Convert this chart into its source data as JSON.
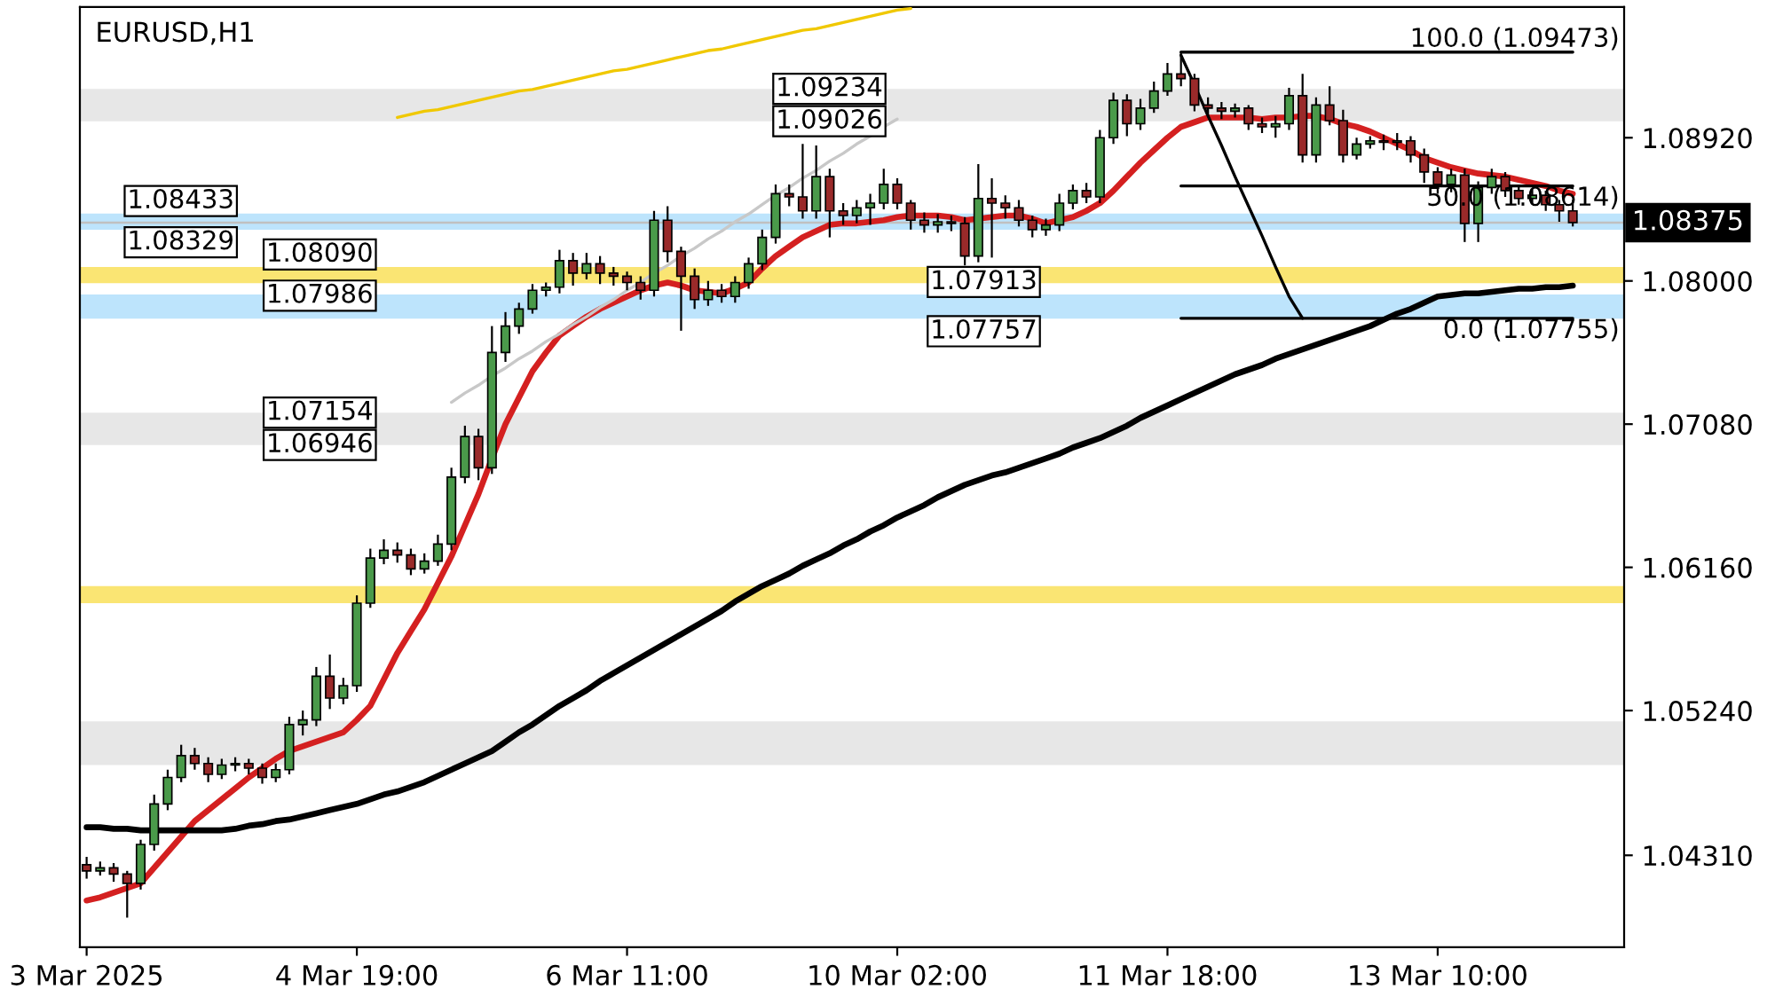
{
  "chart_data": {
    "type": "candlestick",
    "title": "EURUSD,H1",
    "categories": [
      "3 Mar 2025",
      null,
      null,
      null,
      null,
      null,
      null,
      null,
      null,
      null,
      null,
      null,
      null,
      null,
      null,
      null,
      null,
      null,
      null,
      null,
      "4 Mar 19:00",
      null,
      null,
      null,
      null,
      null,
      null,
      null,
      null,
      null,
      null,
      null,
      null,
      null,
      null,
      null,
      null,
      null,
      null,
      null,
      "6 Mar 11:00",
      null,
      null,
      null,
      null,
      null,
      null,
      null,
      null,
      null,
      null,
      null,
      null,
      null,
      null,
      null,
      null,
      null,
      null,
      null,
      "10 Mar 02:00",
      null,
      null,
      null,
      null,
      null,
      null,
      null,
      null,
      null,
      null,
      null,
      null,
      null,
      null,
      null,
      null,
      null,
      null,
      null,
      "11 Mar 18:00",
      null,
      null,
      null,
      null,
      null,
      null,
      null,
      null,
      null,
      null,
      null,
      null,
      null,
      null,
      null,
      null,
      null,
      null,
      null,
      "13 Mar 10:00",
      null,
      null,
      null,
      null,
      null,
      null,
      null,
      null,
      null,
      null
    ],
    "ohlc": [
      [
        1.0425,
        1.043,
        1.0416,
        1.0421
      ],
      [
        1.0421,
        1.0427,
        1.0418,
        1.0423
      ],
      [
        1.0423,
        1.0426,
        1.0414,
        1.0419
      ],
      [
        1.0419,
        1.0421,
        1.0391,
        1.0413
      ],
      [
        1.0413,
        1.0441,
        1.0409,
        1.0438
      ],
      [
        1.0438,
        1.047,
        1.0434,
        1.0464
      ],
      [
        1.0464,
        1.0486,
        1.046,
        1.0481
      ],
      [
        1.0481,
        1.0502,
        1.0478,
        1.0495
      ],
      [
        1.0495,
        1.05,
        1.0486,
        1.049
      ],
      [
        1.049,
        1.0494,
        1.0478,
        1.0483
      ],
      [
        1.0483,
        1.0493,
        1.048,
        1.0489
      ],
      [
        1.0489,
        1.0494,
        1.0485,
        1.049
      ],
      [
        1.049,
        1.0493,
        1.0483,
        1.0487
      ],
      [
        1.0487,
        1.049,
        1.0477,
        1.0481
      ],
      [
        1.0481,
        1.049,
        1.0478,
        1.0486
      ],
      [
        1.0486,
        1.052,
        1.0483,
        1.0515
      ],
      [
        1.0515,
        1.0524,
        1.0508,
        1.0518
      ],
      [
        1.0518,
        1.0552,
        1.0514,
        1.0546
      ],
      [
        1.0546,
        1.056,
        1.0525,
        1.0532
      ],
      [
        1.0532,
        1.0545,
        1.0528,
        1.054
      ],
      [
        1.054,
        1.0598,
        1.0536,
        1.0593
      ],
      [
        1.0593,
        1.0628,
        1.059,
        1.0622
      ],
      [
        1.0622,
        1.0634,
        1.0618,
        1.0627
      ],
      [
        1.0627,
        1.0632,
        1.0619,
        1.0624
      ],
      [
        1.0624,
        1.0628,
        1.0611,
        1.0615
      ],
      [
        1.0615,
        1.0625,
        1.0612,
        1.062
      ],
      [
        1.062,
        1.0637,
        1.0617,
        1.0631
      ],
      [
        1.0631,
        1.068,
        1.0627,
        1.0674
      ],
      [
        1.0674,
        1.0707,
        1.067,
        1.07
      ],
      [
        1.07,
        1.0705,
        1.0672,
        1.068
      ],
      [
        1.068,
        1.0771,
        1.0676,
        1.0754
      ],
      [
        1.0754,
        1.078,
        1.0748,
        1.0771
      ],
      [
        1.0771,
        1.0786,
        1.0766,
        1.0782
      ],
      [
        1.0782,
        1.0798,
        1.0779,
        1.0794
      ],
      [
        1.0794,
        1.0799,
        1.079,
        1.0796
      ],
      [
        1.0796,
        1.082,
        1.0792,
        1.0813
      ],
      [
        1.0813,
        1.0818,
        1.0797,
        1.0805
      ],
      [
        1.0805,
        1.0818,
        1.0801,
        1.0811
      ],
      [
        1.0811,
        1.0816,
        1.0798,
        1.0805
      ],
      [
        1.0805,
        1.0809,
        1.0797,
        1.0803
      ],
      [
        1.0803,
        1.0806,
        1.0794,
        1.0799
      ],
      [
        1.0799,
        1.0803,
        1.0788,
        1.0794
      ],
      [
        1.0794,
        1.0845,
        1.079,
        1.0839
      ],
      [
        1.0839,
        1.0848,
        1.0812,
        1.0819
      ],
      [
        1.0819,
        1.0822,
        1.0768,
        1.0803
      ],
      [
        1.0803,
        1.0808,
        1.0782,
        1.0788
      ],
      [
        1.0788,
        1.08,
        1.0784,
        1.0794
      ],
      [
        1.0794,
        1.0798,
        1.0786,
        1.079
      ],
      [
        1.079,
        1.0803,
        1.0786,
        1.0799
      ],
      [
        1.0799,
        1.0815,
        1.0795,
        1.0811
      ],
      [
        1.0811,
        1.0833,
        1.0807,
        1.0828
      ],
      [
        1.0828,
        1.0862,
        1.0824,
        1.0856
      ],
      [
        1.0856,
        1.0862,
        1.0848,
        1.0854
      ],
      [
        1.0854,
        1.0888,
        1.084,
        1.0845
      ],
      [
        1.0845,
        1.0887,
        1.084,
        1.0867
      ],
      [
        1.0867,
        1.0872,
        1.0828,
        1.0845
      ],
      [
        1.0845,
        1.085,
        1.0836,
        1.0842
      ],
      [
        1.0842,
        1.0852,
        1.0837,
        1.0847
      ],
      [
        1.0847,
        1.0856,
        1.0836,
        1.085
      ],
      [
        1.085,
        1.0872,
        1.0846,
        1.0862
      ],
      [
        1.0862,
        1.0866,
        1.0846,
        1.085
      ],
      [
        1.085,
        1.0852,
        1.0833,
        1.0839
      ],
      [
        1.0839,
        1.0844,
        1.0831,
        1.0836
      ],
      [
        1.0836,
        1.0843,
        1.0831,
        1.0838
      ],
      [
        1.0838,
        1.0842,
        1.0832,
        1.0837
      ],
      [
        1.0837,
        1.0841,
        1.081,
        1.0816
      ],
      [
        1.0816,
        1.0875,
        1.0812,
        1.0853
      ],
      [
        1.0853,
        1.0866,
        1.0815,
        1.085
      ],
      [
        1.085,
        1.0855,
        1.084,
        1.0847
      ],
      [
        1.0847,
        1.0852,
        1.0835,
        1.0839
      ],
      [
        1.0839,
        1.0842,
        1.0828,
        1.0833
      ],
      [
        1.0833,
        1.084,
        1.0829,
        1.0836
      ],
      [
        1.0836,
        1.0856,
        1.0832,
        1.085
      ],
      [
        1.085,
        1.0862,
        1.0846,
        1.0858
      ],
      [
        1.0858,
        1.0863,
        1.085,
        1.0854
      ],
      [
        1.0854,
        1.0897,
        1.085,
        1.0892
      ],
      [
        1.0892,
        1.0921,
        1.0888,
        1.0916
      ],
      [
        1.0916,
        1.092,
        1.0893,
        1.0901
      ],
      [
        1.0901,
        1.0917,
        1.0897,
        1.0911
      ],
      [
        1.0911,
        1.0928,
        1.0908,
        1.0922
      ],
      [
        1.0922,
        1.094,
        1.0919,
        1.0933
      ],
      [
        1.0933,
        1.0947,
        1.0925,
        1.093
      ],
      [
        1.093,
        1.0933,
        1.0909,
        1.0913
      ],
      [
        1.0913,
        1.0918,
        1.0906,
        1.0911
      ],
      [
        1.0911,
        1.0915,
        1.0904,
        1.0909
      ],
      [
        1.0909,
        1.0914,
        1.0905,
        1.0911
      ],
      [
        1.0911,
        1.0913,
        1.0897,
        1.0901
      ],
      [
        1.0901,
        1.0905,
        1.0895,
        1.0899
      ],
      [
        1.0899,
        1.0906,
        1.0892,
        1.0901
      ],
      [
        1.0901,
        1.0924,
        1.0897,
        1.0919
      ],
      [
        1.0919,
        1.0933,
        1.0876,
        1.0881
      ],
      [
        1.0881,
        1.0918,
        1.0876,
        1.0913
      ],
      [
        1.0913,
        1.0925,
        1.09,
        1.0903
      ],
      [
        1.0903,
        1.091,
        1.0876,
        1.0881
      ],
      [
        1.0881,
        1.0892,
        1.0878,
        1.0888
      ],
      [
        1.0888,
        1.0893,
        1.0885,
        1.089
      ],
      [
        1.089,
        1.0894,
        1.0884,
        1.0889
      ],
      [
        1.0889,
        1.0895,
        1.0884,
        1.089
      ],
      [
        1.089,
        1.0893,
        1.0876,
        1.0881
      ],
      [
        1.0881,
        1.0885,
        1.0863,
        1.087
      ],
      [
        1.087,
        1.0873,
        1.0856,
        1.0862
      ],
      [
        1.0862,
        1.0872,
        1.0857,
        1.0868
      ],
      [
        1.0868,
        1.0872,
        1.0825,
        1.0837
      ],
      [
        1.0837,
        1.0864,
        1.0825,
        1.086
      ],
      [
        1.086,
        1.0872,
        1.0856,
        1.0867
      ],
      [
        1.0867,
        1.087,
        1.0854,
        1.0858
      ],
      [
        1.0858,
        1.0862,
        1.0849,
        1.0853
      ],
      [
        1.0853,
        1.0859,
        1.0849,
        1.0855
      ],
      [
        1.0855,
        1.0858,
        1.0845,
        1.0849
      ],
      [
        1.0849,
        1.0852,
        1.0838,
        1.0845
      ],
      [
        1.0845,
        1.0852,
        1.0835,
        1.08375
      ]
    ],
    "series": [
      {
        "type": "line",
        "color": "#d42020",
        "values": [
          1.0402,
          1.0404,
          1.0407,
          1.041,
          1.0413,
          1.0423,
          1.0433,
          1.0443,
          1.0453,
          1.046,
          1.0467,
          1.0474,
          1.0481,
          1.0487,
          1.0493,
          1.0498,
          1.0501,
          1.0504,
          1.0507,
          1.051,
          1.0518,
          1.0527,
          1.0544,
          1.0561,
          1.0575,
          1.0589,
          1.0606,
          1.0623,
          1.0643,
          1.0663,
          1.0686,
          1.0708,
          1.0725,
          1.0742,
          1.0754,
          1.0765,
          1.0771,
          1.0777,
          1.0782,
          1.0786,
          1.079,
          1.0794,
          1.0797,
          1.0799,
          1.0797,
          1.0794,
          1.0793,
          1.0792,
          1.0795,
          1.0799,
          1.0808,
          1.0816,
          1.0822,
          1.0828,
          1.0832,
          1.0836,
          1.0837,
          1.0837,
          1.0838,
          1.0839,
          1.0841,
          1.0842,
          1.0842,
          1.0842,
          1.0841,
          1.0839,
          1.084,
          1.0841,
          1.0842,
          1.0842,
          1.084,
          1.0837,
          1.0839,
          1.0841,
          1.0845,
          1.085,
          1.0858,
          1.0867,
          1.0876,
          1.0884,
          1.0892,
          1.0899,
          1.0902,
          1.0905,
          1.0905,
          1.0905,
          1.0905,
          1.0904,
          1.0905,
          1.0905,
          1.0906,
          1.0906,
          1.0904,
          1.0901,
          1.0899,
          1.0896,
          1.0892,
          1.0888,
          1.0884,
          1.0879,
          1.0876,
          1.0873,
          1.0871,
          1.0869,
          1.0868,
          1.0867,
          1.0865,
          1.0863,
          1.0861,
          1.0858,
          1.0856
        ]
      },
      {
        "type": "line",
        "color": "#000000",
        "values": [
          1.0449,
          1.0449,
          1.0448,
          1.0448,
          1.0447,
          1.0447,
          1.0447,
          1.0447,
          1.0447,
          1.0447,
          1.0447,
          1.0448,
          1.045,
          1.0451,
          1.0453,
          1.0454,
          1.0456,
          1.0458,
          1.046,
          1.0462,
          1.0464,
          1.0467,
          1.047,
          1.0472,
          1.0475,
          1.0478,
          1.0482,
          1.0486,
          1.049,
          1.0494,
          1.0498,
          1.0504,
          1.051,
          1.0515,
          1.0521,
          1.0527,
          1.0532,
          1.0537,
          1.0543,
          1.0548,
          1.0553,
          1.0558,
          1.0563,
          1.0568,
          1.0573,
          1.0578,
          1.0583,
          1.0588,
          1.0594,
          1.0599,
          1.0604,
          1.0608,
          1.0612,
          1.0617,
          1.0621,
          1.0625,
          1.063,
          1.0634,
          1.0639,
          1.0643,
          1.0648,
          1.0652,
          1.0656,
          1.0661,
          1.0665,
          1.0669,
          1.0672,
          1.0675,
          1.0677,
          1.068,
          1.0683,
          1.0686,
          1.0689,
          1.0693,
          1.0696,
          1.0699,
          1.0703,
          1.0707,
          1.0712,
          1.0716,
          1.072,
          1.0724,
          1.0728,
          1.0732,
          1.0736,
          1.074,
          1.0743,
          1.0746,
          1.075,
          1.0753,
          1.0756,
          1.0759,
          1.0762,
          1.0765,
          1.0768,
          1.0771,
          1.0775,
          1.0779,
          1.0782,
          1.0786,
          1.079,
          1.0791,
          1.0792,
          1.0792,
          1.0793,
          1.0794,
          1.0795,
          1.0795,
          1.0796,
          1.0796,
          1.0797
        ]
      },
      {
        "type": "line",
        "color": "#f0c800",
        "values": [
          null,
          null,
          null,
          null,
          null,
          null,
          null,
          null,
          null,
          null,
          null,
          null,
          null,
          null,
          null,
          null,
          null,
          null,
          null,
          null,
          null,
          null,
          null,
          1.0905,
          1.0907,
          1.0909,
          1.091,
          1.0912,
          1.0914,
          1.0916,
          1.0918,
          1.092,
          1.0922,
          1.0923,
          1.0925,
          1.0927,
          1.0929,
          1.0931,
          1.0933,
          1.0935,
          1.0936,
          1.0938,
          1.094,
          1.0942,
          1.0944,
          1.0946,
          1.0948,
          1.0949,
          1.0951,
          1.0953,
          1.0955,
          1.0957,
          1.0959,
          1.0961,
          1.0962,
          1.0964,
          1.0966,
          1.0968,
          1.097,
          1.0972,
          1.0974,
          1.0975,
          null,
          null,
          null,
          null,
          null,
          null,
          null,
          null,
          null,
          null,
          null,
          null,
          null,
          null,
          null,
          null,
          null,
          null,
          null,
          null,
          null,
          null,
          null,
          null,
          null,
          null,
          null,
          null,
          null,
          null,
          null,
          null,
          null,
          null,
          null,
          null,
          null,
          null,
          null,
          null,
          null,
          null,
          null,
          null,
          null,
          null,
          null,
          null,
          null
        ]
      },
      {
        "type": "line",
        "color": "#c8c8c8",
        "values": [
          null,
          null,
          null,
          null,
          null,
          null,
          null,
          null,
          null,
          null,
          null,
          null,
          null,
          null,
          null,
          null,
          null,
          null,
          null,
          null,
          null,
          null,
          null,
          null,
          null,
          null,
          null,
          1.0722,
          1.0728,
          1.0733,
          1.0739,
          1.0744,
          1.075,
          1.0755,
          1.0761,
          1.0766,
          1.0772,
          1.0777,
          1.0783,
          1.0788,
          1.0794,
          1.0799,
          1.0805,
          1.081,
          1.0816,
          1.0821,
          1.0827,
          1.0832,
          1.0838,
          1.0843,
          1.0849,
          1.0855,
          1.086,
          1.0866,
          1.0871,
          1.0877,
          1.0882,
          1.0888,
          1.0893,
          1.0899,
          1.0904,
          null,
          null,
          null,
          null,
          null,
          null,
          null,
          null,
          null,
          null,
          null,
          null,
          null,
          null,
          null,
          null,
          null,
          null,
          null,
          null,
          null,
          null,
          null,
          null,
          null,
          null,
          null,
          null,
          null,
          null,
          null,
          null,
          null,
          null,
          null,
          null,
          null,
          null,
          null,
          null,
          null,
          null,
          null,
          null,
          null,
          null,
          null,
          null,
          null,
          null
        ]
      },
      {
        "type": "line",
        "color": "#000000",
        "values": [
          null,
          null,
          null,
          null,
          null,
          null,
          null,
          null,
          null,
          null,
          null,
          null,
          null,
          null,
          null,
          null,
          null,
          null,
          null,
          null,
          null,
          null,
          null,
          null,
          null,
          null,
          null,
          null,
          null,
          null,
          null,
          null,
          null,
          null,
          null,
          null,
          null,
          null,
          null,
          null,
          null,
          null,
          null,
          null,
          null,
          null,
          null,
          null,
          null,
          null,
          null,
          null,
          null,
          null,
          null,
          null,
          null,
          null,
          null,
          null,
          null,
          null,
          null,
          null,
          null,
          null,
          null,
          null,
          null,
          null,
          null,
          null,
          null,
          null,
          null,
          null,
          null,
          null,
          null,
          null,
          null,
          1.0945,
          1.0926,
          1.0906,
          1.0887,
          1.0867,
          1.0848,
          1.0829,
          1.0809,
          1.079,
          1.0776,
          null,
          null,
          null,
          null,
          null,
          null,
          null,
          null,
          null,
          null,
          null,
          null,
          null,
          null,
          null,
          null,
          null,
          null,
          null,
          null
        ]
      },
      {
        "type": "line",
        "color": "#000000",
        "name": "100.0 (1.09473)",
        "values": [
          null,
          null,
          null,
          null,
          null,
          null,
          null,
          null,
          null,
          null,
          null,
          null,
          null,
          null,
          null,
          null,
          null,
          null,
          null,
          null,
          null,
          null,
          null,
          null,
          null,
          null,
          null,
          null,
          null,
          null,
          null,
          null,
          null,
          null,
          null,
          null,
          null,
          null,
          null,
          null,
          null,
          null,
          null,
          null,
          null,
          null,
          null,
          null,
          null,
          null,
          null,
          null,
          null,
          null,
          null,
          null,
          null,
          null,
          null,
          null,
          null,
          null,
          null,
          null,
          null,
          null,
          null,
          null,
          null,
          null,
          null,
          null,
          null,
          null,
          null,
          null,
          null,
          null,
          null,
          null,
          null,
          1.0947,
          1.0947,
          1.0947,
          1.0947,
          1.0947,
          1.0947,
          1.0947,
          1.0947,
          1.0947,
          1.0947,
          1.0947,
          1.0947,
          1.0947,
          1.0947,
          1.0947,
          1.0947,
          1.0947,
          1.0947,
          1.0947,
          1.0947,
          1.0947,
          1.0947,
          1.0947,
          1.0947,
          1.0947,
          1.0947,
          1.0947,
          1.0947,
          1.0947,
          1.0947
        ]
      },
      {
        "type": "line",
        "color": "#000000",
        "name": "50.0 (1.08614)",
        "values": [
          null,
          null,
          null,
          null,
          null,
          null,
          null,
          null,
          null,
          null,
          null,
          null,
          null,
          null,
          null,
          null,
          null,
          null,
          null,
          null,
          null,
          null,
          null,
          null,
          null,
          null,
          null,
          null,
          null,
          null,
          null,
          null,
          null,
          null,
          null,
          null,
          null,
          null,
          null,
          null,
          null,
          null,
          null,
          null,
          null,
          null,
          null,
          null,
          null,
          null,
          null,
          null,
          null,
          null,
          null,
          null,
          null,
          null,
          null,
          null,
          null,
          null,
          null,
          null,
          null,
          null,
          null,
          null,
          null,
          null,
          null,
          null,
          null,
          null,
          null,
          null,
          null,
          null,
          null,
          null,
          null,
          1.0861,
          1.0861,
          1.0861,
          1.0861,
          1.0861,
          1.0861,
          1.0861,
          1.0861,
          1.0861,
          1.0861,
          1.0861,
          1.0861,
          1.0861,
          1.0861,
          1.0861,
          1.0861,
          1.0861,
          1.0861,
          1.0861,
          1.0861,
          1.0861,
          1.0861,
          1.0861,
          1.0861,
          1.0861,
          1.0861,
          1.0861,
          1.0861,
          1.0861,
          1.0861
        ]
      },
      {
        "type": "line",
        "color": "#000000",
        "name": "0.0 (1.07755)",
        "values": [
          null,
          null,
          null,
          null,
          null,
          null,
          null,
          null,
          null,
          null,
          null,
          null,
          null,
          null,
          null,
          null,
          null,
          null,
          null,
          null,
          null,
          null,
          null,
          null,
          null,
          null,
          null,
          null,
          null,
          null,
          null,
          null,
          null,
          null,
          null,
          null,
          null,
          null,
          null,
          null,
          null,
          null,
          null,
          null,
          null,
          null,
          null,
          null,
          null,
          null,
          null,
          null,
          null,
          null,
          null,
          null,
          null,
          null,
          null,
          null,
          null,
          null,
          null,
          null,
          null,
          null,
          null,
          null,
          null,
          null,
          null,
          null,
          null,
          null,
          null,
          null,
          null,
          null,
          null,
          null,
          null,
          1.0776,
          1.0776,
          1.0776,
          1.0776,
          1.0776,
          1.0776,
          1.0776,
          1.0776,
          1.0776,
          1.0776,
          1.0776,
          1.0776,
          1.0776,
          1.0776,
          1.0776,
          1.0776,
          1.0776,
          1.0776,
          1.0776,
          1.0776,
          1.0776,
          1.0776,
          1.0776,
          1.0776,
          1.0776,
          1.0776,
          1.0776,
          1.0776,
          1.0776,
          1.0776
        ]
      }
    ],
    "ylim": [
      1.0372,
      1.0976
    ],
    "yticks": [
      {
        "value": 1.0431,
        "label": "1.04310"
      },
      {
        "value": 1.0524,
        "label": "1.05240"
      },
      {
        "value": 1.0616,
        "label": "1.06160"
      },
      {
        "value": 1.0708,
        "label": "1.07080"
      },
      {
        "value": 1.08,
        "label": "1.08000"
      },
      {
        "value": 1.0892,
        "label": "1.08920"
      }
    ],
    "bands": [
      {
        "axis": "y",
        "from": 1.07986,
        "to": 1.0809,
        "color": "#f5d000"
      },
      {
        "axis": "y",
        "from": 1.06946,
        "to": 1.07154,
        "color": "#d3d3d3"
      },
      {
        "axis": "y",
        "from": 1.09026,
        "to": 1.09234,
        "color": "#d3d3d3"
      },
      {
        "axis": "y",
        "from": 1.08329,
        "to": 1.08433,
        "color": "#87cefa"
      },
      {
        "axis": "y",
        "from": 1.07757,
        "to": 1.07913,
        "color": "#87cefa"
      },
      {
        "axis": "y",
        "from": 1.0593,
        "to": 1.0604,
        "color": "#f5d000"
      },
      {
        "axis": "y",
        "from": 1.0489,
        "to": 1.0517,
        "color": "#d3d3d3"
      }
    ],
    "ref_lines": [
      {
        "axis": "y",
        "value": 1.08375,
        "label": "1.08375",
        "color": "#c0c0c0",
        "line_style": "solid"
      }
    ],
    "annotations": [
      {
        "text": "1.08090",
        "y": 1.0809
      },
      {
        "text": "1.07986",
        "y": 1.07986
      },
      {
        "text": "1.07154",
        "y": 1.07154
      },
      {
        "text": "1.06946",
        "y": 1.06946
      },
      {
        "text": "1.09234",
        "y": 1.09234
      },
      {
        "text": "1.09026",
        "y": 1.09026
      },
      {
        "text": "1.08433",
        "y": 1.08433
      },
      {
        "text": "1.08329",
        "y": 1.08329
      },
      {
        "text": "1.07913",
        "y": 1.07913
      },
      {
        "text": "1.07757",
        "y": 1.07757
      }
    ],
    "grid": false
  }
}
